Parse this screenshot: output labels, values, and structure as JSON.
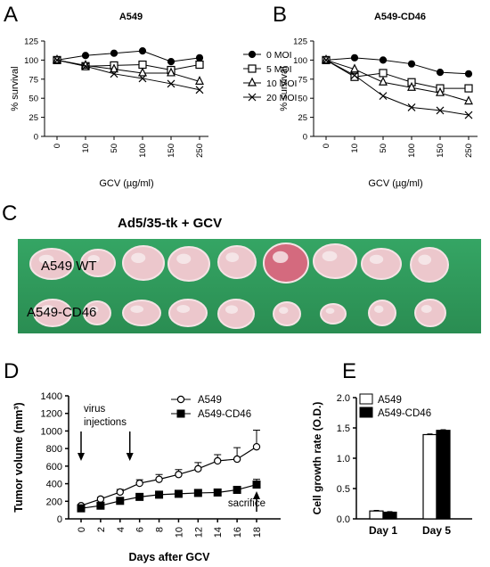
{
  "panel_labels": {
    "a": "A",
    "b": "B",
    "c": "C",
    "d": "D",
    "e": "E"
  },
  "panel_c": {
    "title": "Ad5/35-tk + GCV",
    "row_labels": [
      "A549 WT",
      "A549-CD46"
    ],
    "tumor_counts": [
      9,
      9
    ]
  },
  "panel_d_annotations": {
    "virus_line1": "virus",
    "virus_line2": "injections",
    "sacrifice": "sacrifice"
  },
  "chart_data": [
    {
      "panel": "A",
      "type": "line",
      "title": "A549",
      "xlabel": "GCV (µg/ml)",
      "ylabel": "% survival",
      "categories": [
        "0",
        "10",
        "50",
        "100",
        "150",
        "250"
      ],
      "ylim": [
        0,
        125
      ],
      "yticks": [
        0,
        25,
        50,
        75,
        100,
        125
      ],
      "legend_position": "right",
      "series": [
        {
          "name": "0 MOI",
          "marker": "filled-circle",
          "values": [
            100,
            106,
            109,
            112,
            98,
            103
          ]
        },
        {
          "name": "5 MOI",
          "marker": "open-square",
          "values": [
            100,
            92,
            93,
            94,
            87,
            94
          ]
        },
        {
          "name": "10 MOI",
          "marker": "open-triangle",
          "values": [
            100,
            93,
            88,
            83,
            83,
            72
          ]
        },
        {
          "name": "20 MOI",
          "marker": "x",
          "values": [
            100,
            92,
            82,
            76,
            69,
            61
          ]
        }
      ]
    },
    {
      "panel": "B",
      "type": "line",
      "title": "A549-CD46",
      "xlabel": "GCV (µg/ml)",
      "ylabel": "% survival",
      "categories": [
        "0",
        "10",
        "50",
        "100",
        "150",
        "250"
      ],
      "ylim": [
        0,
        125
      ],
      "yticks": [
        0,
        25,
        50,
        75,
        100,
        125
      ],
      "series": [
        {
          "name": "0 MOI",
          "marker": "filled-circle",
          "values": [
            100,
            103,
            100,
            95,
            84,
            82
          ]
        },
        {
          "name": "5 MOI",
          "marker": "open-square",
          "values": [
            100,
            78,
            83,
            71,
            63,
            63
          ]
        },
        {
          "name": "10 MOI",
          "marker": "open-triangle",
          "values": [
            100,
            88,
            71,
            64,
            57,
            46
          ]
        },
        {
          "name": "20 MOI",
          "marker": "x",
          "values": [
            100,
            80,
            53,
            38,
            34,
            28
          ]
        }
      ]
    },
    {
      "panel": "D",
      "type": "line",
      "xlabel": "Days after GCV",
      "ylabel": "Tumor volume (mm³)",
      "xticks": [
        0,
        2,
        4,
        6,
        8,
        10,
        12,
        14,
        16,
        18
      ],
      "xlim": [
        -1,
        18.5
      ],
      "ylim": [
        0,
        1400
      ],
      "yticks": [
        0,
        200,
        400,
        600,
        800,
        1000,
        1200,
        1400
      ],
      "legend_position": "top-right",
      "series": [
        {
          "name": "A549",
          "marker": "open-circle",
          "x": [
            0,
            2,
            4,
            6,
            8,
            10,
            12,
            14,
            16,
            18
          ],
          "values": [
            150,
            225,
            305,
            405,
            450,
            505,
            570,
            660,
            680,
            820
          ],
          "errors": [
            15,
            20,
            30,
            40,
            55,
            55,
            70,
            70,
            130,
            190
          ]
        },
        {
          "name": "A549-CD46",
          "marker": "filled-square",
          "x": [
            0,
            2,
            4,
            6,
            8,
            10,
            12,
            14,
            16,
            18
          ],
          "values": [
            120,
            150,
            205,
            250,
            275,
            285,
            295,
            300,
            330,
            390
          ],
          "errors": [
            10,
            15,
            20,
            20,
            25,
            25,
            30,
            30,
            40,
            60
          ]
        }
      ]
    },
    {
      "panel": "E",
      "type": "bar",
      "ylabel": "Cell growth rate (O.D.)",
      "categories": [
        "Day 1",
        "Day 5"
      ],
      "ylim": [
        0,
        2.0
      ],
      "yticks": [
        0.0,
        0.5,
        1.0,
        1.5,
        2.0
      ],
      "legend_position": "top-left",
      "series": [
        {
          "name": "A549",
          "color": "#ffffff",
          "values": [
            0.13,
            1.39
          ],
          "errors": [
            0.01,
            0.01
          ]
        },
        {
          "name": "A549-CD46",
          "color": "#000000",
          "values": [
            0.11,
            1.46
          ],
          "errors": [
            0.01,
            0.01
          ]
        }
      ]
    }
  ]
}
